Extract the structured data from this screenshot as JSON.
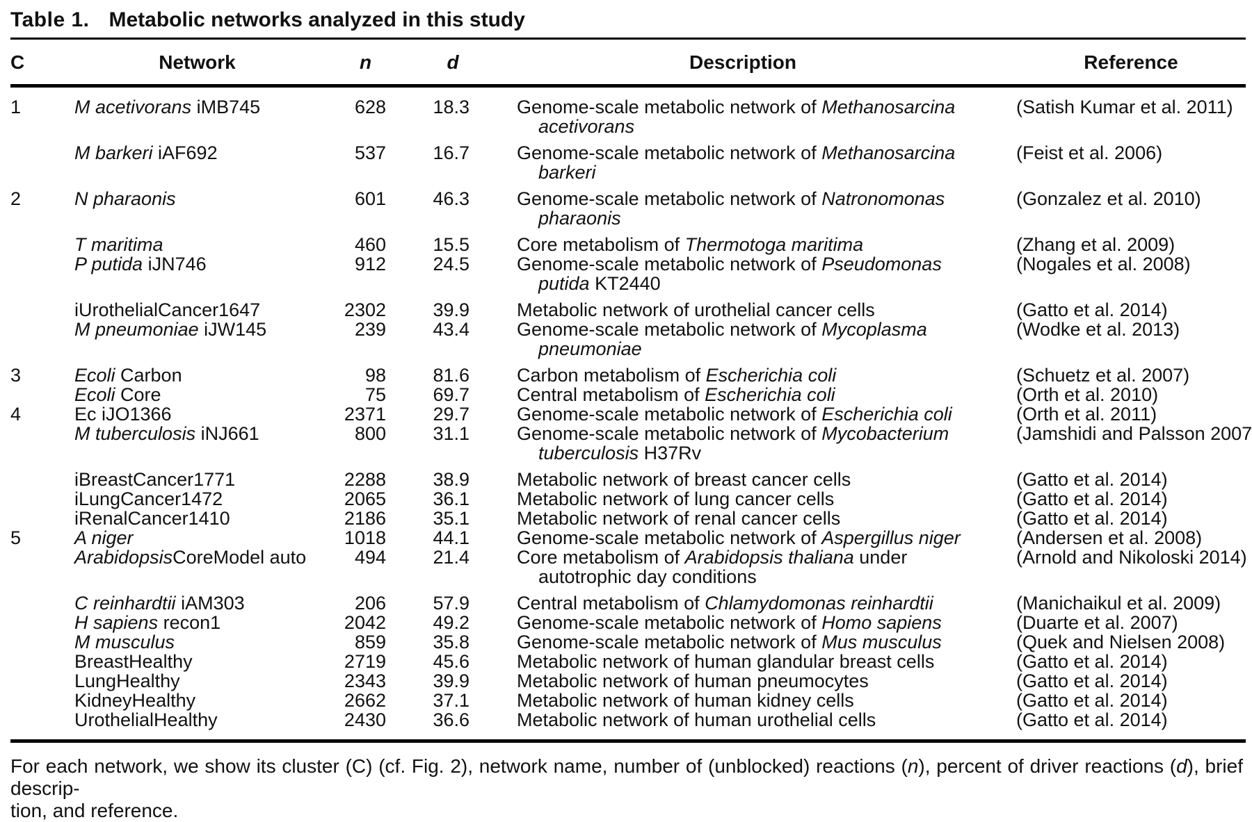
{
  "title": {
    "label": "Table 1.",
    "text": "Metabolic networks analyzed in this study"
  },
  "columns": {
    "c": "C",
    "network": "Network",
    "n": "n",
    "d": "d",
    "description": "Description",
    "reference": "Reference"
  },
  "rows": [
    {
      "c": "1",
      "network": [
        [
          "M acetivorans",
          true
        ],
        [
          " iMB745",
          false
        ]
      ],
      "n": "628",
      "d": "18.3",
      "description": [
        [
          [
            "Genome-scale metabolic network of ",
            false
          ],
          [
            "Methanosarcina",
            true
          ]
        ],
        [
          [
            "acetivorans",
            true
          ]
        ]
      ],
      "reference": "(Satish Kumar et al. 2011)"
    },
    {
      "c": "",
      "network": [
        [
          "M barkeri",
          true
        ],
        [
          " iAF692",
          false
        ]
      ],
      "n": "537",
      "d": "16.7",
      "description": [
        [
          [
            "Genome-scale metabolic network of ",
            false
          ],
          [
            "Methanosarcina",
            true
          ]
        ],
        [
          [
            "barkeri",
            true
          ]
        ]
      ],
      "reference": "(Feist et al. 2006)"
    },
    {
      "c": "2",
      "network": [
        [
          "N pharaonis",
          true
        ]
      ],
      "n": "601",
      "d": "46.3",
      "description": [
        [
          [
            "Genome-scale metabolic network of ",
            false
          ],
          [
            "Natronomonas",
            true
          ]
        ],
        [
          [
            "pharaonis",
            true
          ]
        ]
      ],
      "reference": "(Gonzalez et al. 2010)"
    },
    {
      "c": "",
      "network": [
        [
          "T maritima",
          true
        ]
      ],
      "n": "460",
      "d": "15.5",
      "description": [
        [
          [
            "Core metabolism of ",
            false
          ],
          [
            "Thermotoga maritima",
            true
          ]
        ]
      ],
      "reference": "(Zhang et al. 2009)"
    },
    {
      "c": "",
      "network": [
        [
          "P putida",
          true
        ],
        [
          " iJN746",
          false
        ]
      ],
      "n": "912",
      "d": "24.5",
      "description": [
        [
          [
            "Genome-scale metabolic network of ",
            false
          ],
          [
            "Pseudomonas",
            true
          ]
        ],
        [
          [
            "putida",
            true
          ],
          [
            " KT2440",
            false
          ]
        ]
      ],
      "reference": "(Nogales et al. 2008)"
    },
    {
      "c": "",
      "network": [
        [
          "iUrothelialCancer1647",
          false
        ]
      ],
      "n": "2302",
      "d": "39.9",
      "description": [
        [
          [
            "Metabolic network of urothelial cancer cells",
            false
          ]
        ]
      ],
      "reference": "(Gatto et al. 2014)"
    },
    {
      "c": "",
      "network": [
        [
          "M pneumoniae",
          true
        ],
        [
          " iJW145",
          false
        ]
      ],
      "n": "239",
      "d": "43.4",
      "description": [
        [
          [
            "Genome-scale metabolic network of ",
            false
          ],
          [
            "Mycoplasma",
            true
          ]
        ],
        [
          [
            "pneumoniae",
            true
          ]
        ]
      ],
      "reference": "(Wodke et al. 2013)"
    },
    {
      "c": "3",
      "network": [
        [
          "Ecoli",
          true
        ],
        [
          " Carbon",
          false
        ]
      ],
      "n": "98",
      "d": "81.6",
      "description": [
        [
          [
            "Carbon metabolism of ",
            false
          ],
          [
            "Escherichia coli",
            true
          ]
        ]
      ],
      "reference": "(Schuetz et al. 2007)"
    },
    {
      "c": "",
      "network": [
        [
          "Ecoli",
          true
        ],
        [
          " Core",
          false
        ]
      ],
      "n": "75",
      "d": "69.7",
      "description": [
        [
          [
            "Central metabolism of ",
            false
          ],
          [
            "Escherichia coli",
            true
          ]
        ]
      ],
      "reference": "(Orth et al. 2010)"
    },
    {
      "c": "4",
      "network": [
        [
          "Ec iJO1366",
          false
        ]
      ],
      "n": "2371",
      "d": "29.7",
      "description": [
        [
          [
            "Genome-scale metabolic network of ",
            false
          ],
          [
            "Escherichia coli",
            true
          ]
        ]
      ],
      "reference": "(Orth et al. 2011)"
    },
    {
      "c": "",
      "network": [
        [
          "M tuberculosis",
          true
        ],
        [
          " iNJ661",
          false
        ]
      ],
      "n": "800",
      "d": "31.1",
      "description": [
        [
          [
            "Genome-scale metabolic network of ",
            false
          ],
          [
            "Mycobacterium",
            true
          ]
        ],
        [
          [
            "tuberculosis",
            true
          ],
          [
            " H37Rv",
            false
          ]
        ]
      ],
      "reference": "(Jamshidi and Palsson 2007)"
    },
    {
      "c": "",
      "network": [
        [
          "iBreastCancer1771",
          false
        ]
      ],
      "n": "2288",
      "d": "38.9",
      "description": [
        [
          [
            "Metabolic network of breast cancer cells",
            false
          ]
        ]
      ],
      "reference": "(Gatto et al. 2014)"
    },
    {
      "c": "",
      "network": [
        [
          "iLungCancer1472",
          false
        ]
      ],
      "n": "2065",
      "d": "36.1",
      "description": [
        [
          [
            "Metabolic network of lung cancer cells",
            false
          ]
        ]
      ],
      "reference": "(Gatto et al. 2014)"
    },
    {
      "c": "",
      "network": [
        [
          "iRenalCancer1410",
          false
        ]
      ],
      "n": "2186",
      "d": "35.1",
      "description": [
        [
          [
            "Metabolic network of renal cancer cells",
            false
          ]
        ]
      ],
      "reference": "(Gatto et al. 2014)"
    },
    {
      "c": "5",
      "network": [
        [
          "A niger",
          true
        ]
      ],
      "n": "1018",
      "d": "44.1",
      "description": [
        [
          [
            "Genome-scale metabolic network of ",
            false
          ],
          [
            "Aspergillus niger",
            true
          ]
        ]
      ],
      "reference": "(Andersen et al. 2008)"
    },
    {
      "c": "",
      "network": [
        [
          "Arabidopsis",
          true
        ],
        [
          "CoreModel auto",
          false
        ]
      ],
      "n": "494",
      "d": "21.4",
      "description": [
        [
          [
            "Core metabolism of ",
            false
          ],
          [
            "Arabidopsis thaliana",
            true
          ],
          [
            " under",
            false
          ]
        ],
        [
          [
            "autotrophic day conditions",
            false
          ]
        ]
      ],
      "reference": "(Arnold and Nikoloski 2014)"
    },
    {
      "c": "",
      "network": [
        [
          "C reinhardtii",
          true
        ],
        [
          " iAM303",
          false
        ]
      ],
      "n": "206",
      "d": "57.9",
      "description": [
        [
          [
            "Central metabolism of ",
            false
          ],
          [
            "Chlamydomonas reinhardtii",
            true
          ]
        ]
      ],
      "reference": "(Manichaikul et al. 2009)"
    },
    {
      "c": "",
      "network": [
        [
          "H sapiens",
          true
        ],
        [
          " recon1",
          false
        ]
      ],
      "n": "2042",
      "d": "49.2",
      "description": [
        [
          [
            "Genome-scale metabolic network of ",
            false
          ],
          [
            "Homo sapiens",
            true
          ]
        ]
      ],
      "reference": "(Duarte et al. 2007)"
    },
    {
      "c": "",
      "network": [
        [
          "M musculus",
          true
        ]
      ],
      "n": "859",
      "d": "35.8",
      "description": [
        [
          [
            "Genome-scale metabolic network of ",
            false
          ],
          [
            "Mus musculus",
            true
          ]
        ]
      ],
      "reference": "(Quek and Nielsen 2008)"
    },
    {
      "c": "",
      "network": [
        [
          "BreastHealthy",
          false
        ]
      ],
      "n": "2719",
      "d": "45.6",
      "description": [
        [
          [
            "Metabolic network of human glandular breast cells",
            false
          ]
        ]
      ],
      "reference": "(Gatto et al. 2014)"
    },
    {
      "c": "",
      "network": [
        [
          "LungHealthy",
          false
        ]
      ],
      "n": "2343",
      "d": "39.9",
      "description": [
        [
          [
            "Metabolic network of human pneumocytes",
            false
          ]
        ]
      ],
      "reference": "(Gatto et al. 2014)"
    },
    {
      "c": "",
      "network": [
        [
          "KidneyHealthy",
          false
        ]
      ],
      "n": "2662",
      "d": "37.1",
      "description": [
        [
          [
            "Metabolic network of human kidney cells",
            false
          ]
        ]
      ],
      "reference": "(Gatto et al. 2014)"
    },
    {
      "c": "",
      "network": [
        [
          "UrothelialHealthy",
          false
        ]
      ],
      "n": "2430",
      "d": "36.6",
      "description": [
        [
          [
            "Metabolic network of human urothelial cells",
            false
          ]
        ]
      ],
      "reference": "(Gatto et al. 2014)"
    }
  ],
  "footnote": {
    "line1": [
      [
        "For each network, we show its cluster (C) (cf. Fig. 2), network name, number of (unblocked) reactions (",
        false
      ],
      [
        "n",
        true
      ],
      [
        "), percent of driver reactions (",
        false
      ],
      [
        "d",
        true
      ],
      [
        "), brief descrip-",
        false
      ]
    ],
    "line2": [
      [
        "tion, and reference.",
        false
      ]
    ]
  },
  "colors": {
    "text": "#111111",
    "rule": "#000000",
    "background": "#ffffff"
  }
}
